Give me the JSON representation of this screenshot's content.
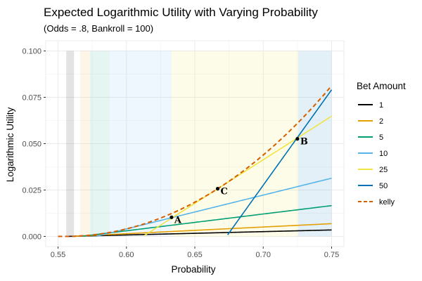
{
  "chart_data": {
    "type": "line",
    "title": "Expected Logarithmic Utility with Varying Probability",
    "subtitle": "(Odds = .8, Bankroll = 100)",
    "xlabel": "Probability",
    "ylabel": "Logarithmic Utility",
    "xlim": [
      0.541,
      0.759
    ],
    "ylim": [
      -0.0055,
      0.1055
    ],
    "x_ticks": [
      0.55,
      0.6,
      0.65,
      0.7,
      0.75
    ],
    "x_tick_labels": [
      "0.55",
      "0.60",
      "0.65",
      "0.70",
      "0.75"
    ],
    "y_ticks": [
      0.0,
      0.025,
      0.05,
      0.075,
      0.1
    ],
    "y_tick_labels": [
      "0.000",
      "0.025",
      "0.050",
      "0.075",
      "0.100"
    ],
    "grid": true,
    "legend_title": "Bet Amount",
    "legend_position": "right",
    "odds": 0.8,
    "bankroll": 100,
    "bands": [
      {
        "x0": 0.556,
        "x1": 0.5617,
        "color": "#000000",
        "opacity": 0.11
      },
      {
        "x0": 0.5617,
        "x1": 0.5662,
        "color": "#ffffff",
        "opacity": 0.0
      },
      {
        "x0": 0.5662,
        "x1": 0.5734,
        "color": "#f0a030",
        "opacity": 0.11
      },
      {
        "x0": 0.5734,
        "x1": 0.5877,
        "color": "#009e73",
        "opacity": 0.1
      },
      {
        "x0": 0.5877,
        "x1": 0.633,
        "color": "#56b4e9",
        "opacity": 0.1
      },
      {
        "x0": 0.633,
        "x1": 0.7255,
        "color": "#f0e442",
        "opacity": 0.12
      },
      {
        "x0": 0.7255,
        "x1": 0.75,
        "color": "#0072b2",
        "opacity": 0.11
      }
    ],
    "series": [
      {
        "name": "1",
        "bet": 1,
        "color": "#000000"
      },
      {
        "name": "2",
        "bet": 2,
        "color": "#e69f00"
      },
      {
        "name": "5",
        "bet": 5,
        "color": "#009e73"
      },
      {
        "name": "10",
        "bet": 10,
        "color": "#56b4e9"
      },
      {
        "name": "25",
        "bet": 25,
        "color": "#f0e442"
      },
      {
        "name": "50",
        "bet": 50,
        "color": "#0072b2"
      },
      {
        "name": "kelly",
        "bet": null,
        "color": "#d55e00",
        "dashed": true
      }
    ],
    "points": [
      {
        "label": "A",
        "x": 0.633,
        "y": 0.0103
      },
      {
        "label": "C",
        "x": 0.6667,
        "y": 0.0257
      },
      {
        "label": "B",
        "x": 0.725,
        "y": 0.0526
      }
    ]
  }
}
